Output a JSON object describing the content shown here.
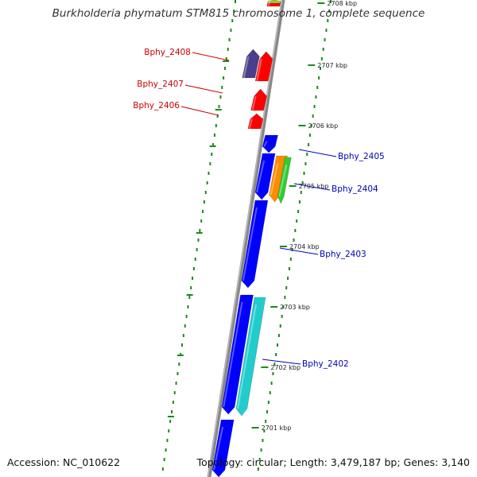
{
  "title": "Burkholderia phymatum STM815 chromosome 1, complete sequence",
  "footer": {
    "accession": "Accession: NC_010622",
    "info": "Topology: circular; Length: 3,479,187 bp; Genes: 3,140"
  },
  "colors": {
    "reverse_label": "#cc0000",
    "forward_label": "#0000bb",
    "backbone": "#888888",
    "tick": "#1a8a1a"
  },
  "ticks": [
    {
      "label": "2708 kbp"
    },
    {
      "label": "2707 kbp"
    },
    {
      "label": "2706 kbp"
    },
    {
      "label": "2705 kbp"
    },
    {
      "label": "2704 kbp"
    },
    {
      "label": "2703 kbp"
    },
    {
      "label": "2702 kbp"
    },
    {
      "label": "2701 kbp"
    }
  ],
  "gene_labels": [
    {
      "name": "Bphy_2408",
      "strand": "reverse"
    },
    {
      "name": "Bphy_2407",
      "strand": "reverse"
    },
    {
      "name": "Bphy_2406",
      "strand": "reverse"
    },
    {
      "name": "Bphy_2405",
      "strand": "forward"
    },
    {
      "name": "Bphy_2404",
      "strand": "forward"
    },
    {
      "name": "Bphy_2403",
      "strand": "forward"
    },
    {
      "name": "Bphy_2402",
      "strand": "forward"
    }
  ],
  "features": [
    {
      "track": "rev_inner",
      "color": "#ff0000",
      "dir": "up"
    },
    {
      "track": "rev_outer",
      "color": "#4a3f8c",
      "dir": "up"
    },
    {
      "track": "rev_inner",
      "color": "#ff0000",
      "dir": "up"
    },
    {
      "track": "rev_inner",
      "color": "#ff0000",
      "dir": "up"
    },
    {
      "track": "rev_inner",
      "color": "#ff0000",
      "dir": "up"
    },
    {
      "track": "rev_inner",
      "color": "#99cc33",
      "dir": "up"
    },
    {
      "track": "fwd_inner",
      "color": "#0000ff",
      "dir": "down"
    },
    {
      "track": "fwd_inner",
      "color": "#0000ff",
      "dir": "down"
    },
    {
      "track": "fwd_outer",
      "color": "#ff8c00",
      "dir": "down"
    },
    {
      "track": "fwd_outer2",
      "color": "#33cc33",
      "dir": "down"
    },
    {
      "track": "fwd_inner",
      "color": "#0000ff",
      "dir": "down"
    },
    {
      "track": "fwd_inner",
      "color": "#0000ff",
      "dir": "down"
    },
    {
      "track": "fwd_outer",
      "color": "#22cccc",
      "dir": "down"
    },
    {
      "track": "fwd_inner",
      "color": "#0000ff",
      "dir": "down"
    }
  ]
}
